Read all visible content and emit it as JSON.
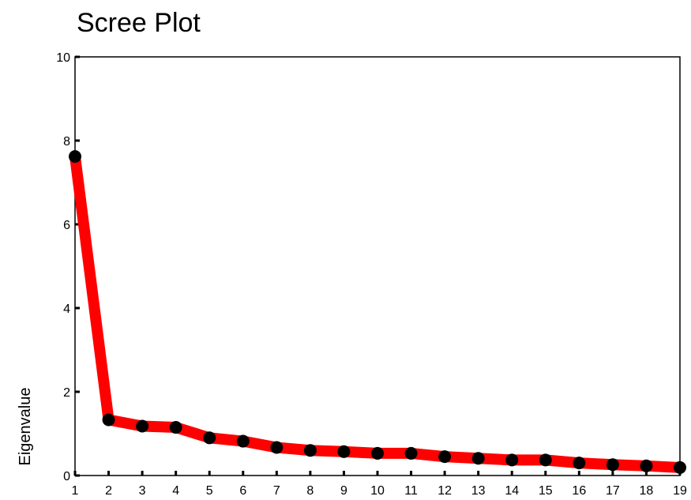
{
  "chart_data": {
    "type": "line",
    "title": "Scree Plot",
    "xlabel": "",
    "ylabel": "Eigenvalue",
    "x": [
      1,
      2,
      3,
      4,
      5,
      6,
      7,
      8,
      9,
      10,
      11,
      12,
      13,
      14,
      15,
      16,
      17,
      18,
      19
    ],
    "series": [
      {
        "values": [
          7.62,
          1.33,
          1.18,
          1.15,
          0.9,
          0.82,
          0.67,
          0.6,
          0.57,
          0.53,
          0.53,
          0.45,
          0.41,
          0.37,
          0.37,
          0.3,
          0.26,
          0.23,
          0.19
        ]
      }
    ],
    "xlim": [
      1,
      19
    ],
    "ylim": [
      0,
      10
    ],
    "yticks": [
      0,
      2,
      4,
      6,
      8,
      10
    ],
    "grid": false,
    "legend": "none",
    "colors": {
      "line": "#ff0000",
      "marker": "#000000",
      "axis": "#000000",
      "background": "#ffffff"
    }
  }
}
